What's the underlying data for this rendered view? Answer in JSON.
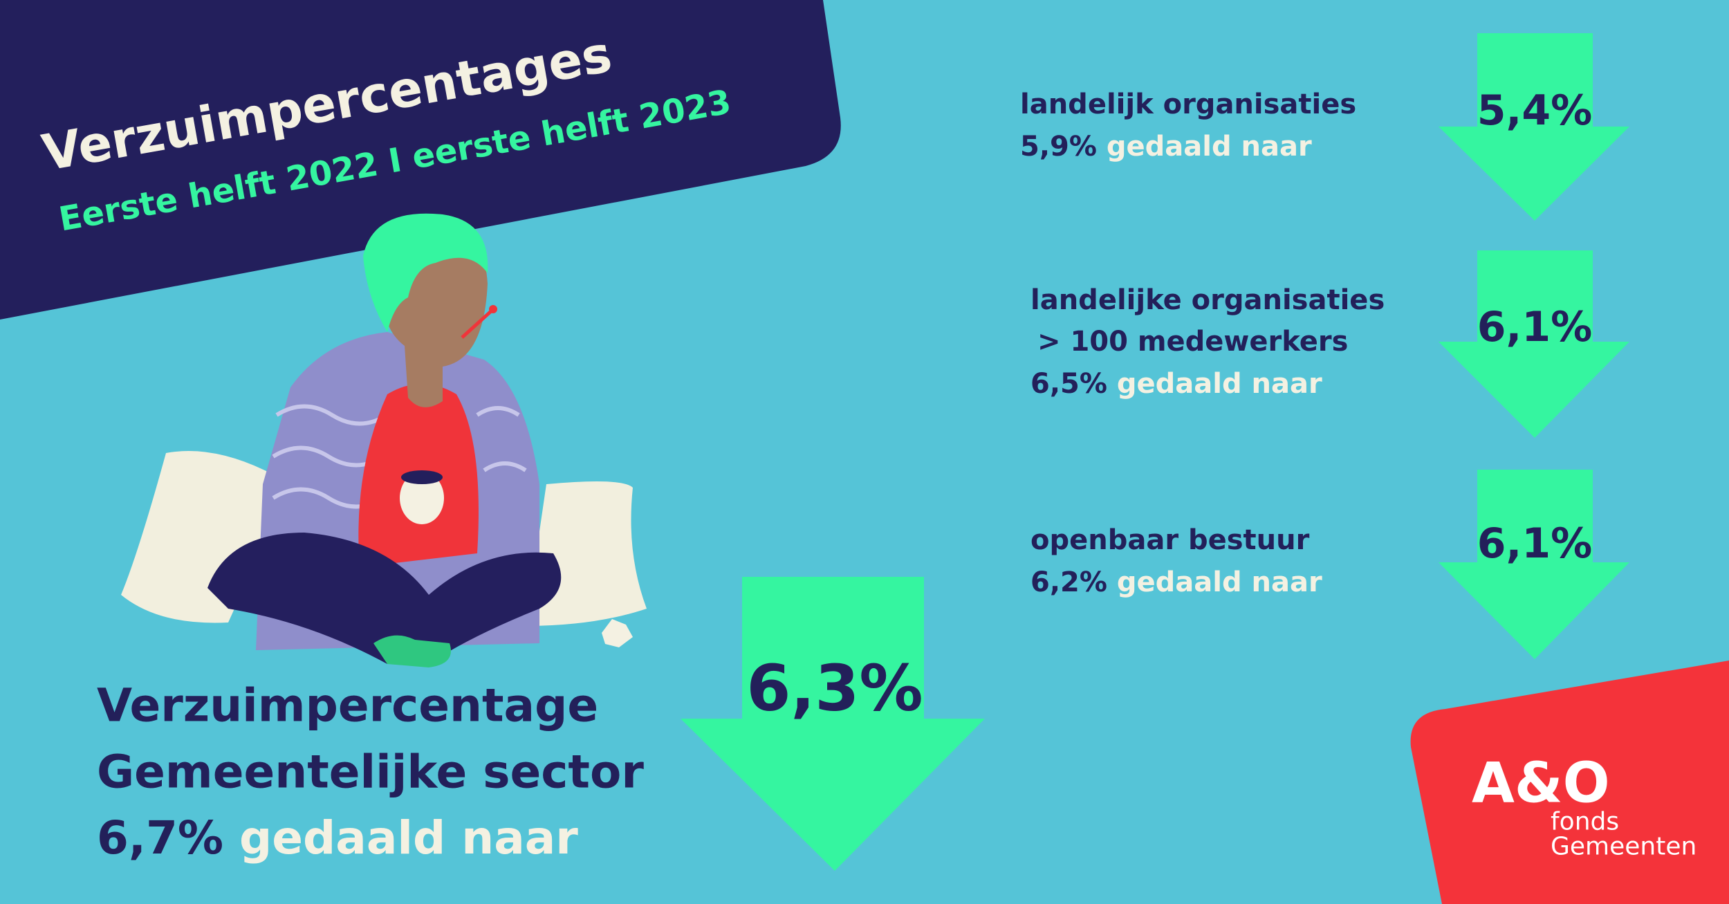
{
  "header": {
    "title": "Verzuimpercentages",
    "subtitle": "Eerste helft 2022 I eerste helft 2023"
  },
  "items": [
    {
      "label": [
        "landelijk organisaties"
      ],
      "from": "5,9%",
      "change": "gedaald naar",
      "to": "5,4%"
    },
    {
      "label": [
        "landelijke organisaties",
        "> 100 medewerkers"
      ],
      "from": "6,5%",
      "change": "gedaald naar",
      "to": "6,1%"
    },
    {
      "label": [
        "openbaar bestuur"
      ],
      "from": "6,2%",
      "change": "gedaald naar",
      "to": "6,1%"
    }
  ],
  "main": {
    "label": [
      "Verzuimpercentage",
      "Gemeentelijke sector"
    ],
    "from": "6,7%",
    "change": "gedaald naar",
    "to": "6,3%"
  },
  "logo": {
    "name": "A&O",
    "lines": [
      "fonds",
      "Gemeenten"
    ]
  }
}
